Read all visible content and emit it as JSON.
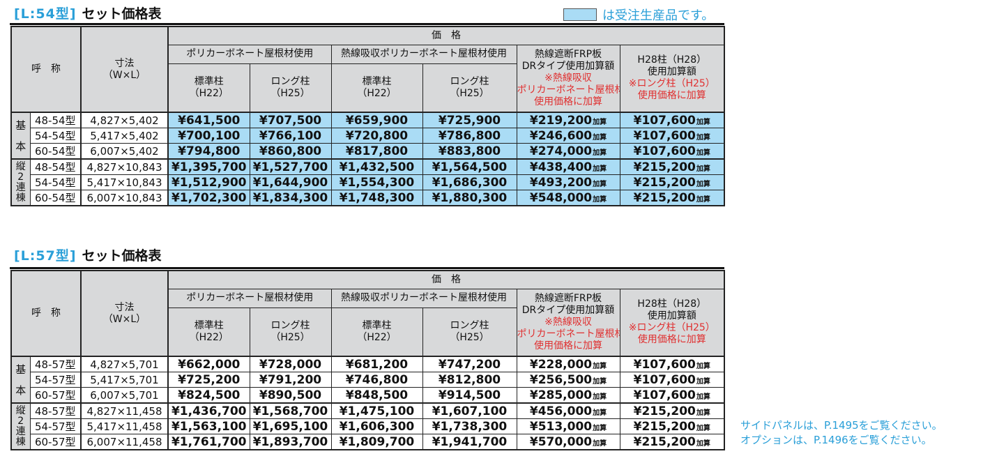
{
  "legend": {
    "text": "は受注生産品です。",
    "swatch_color": "#aadcf5"
  },
  "headers": {
    "name": "呼　称",
    "size_line1": "寸法",
    "size_line2": "（W×L）",
    "price": "価　格",
    "poly": "ポリカーボネート屋根材使用",
    "heat_poly": "熱線吸収ポリカーボネート屋根材使用",
    "std_line1": "標準柱",
    "std_line2": "（H22）",
    "long_line1": "ロング柱",
    "long_line2": "（H25）",
    "frp_line1": "熱線遮断FRP板",
    "frp_line2": "DRタイプ使用加算額",
    "frp_note1": "※熱線吸収",
    "frp_note2": "ポリカーボネート屋根材",
    "frp_note3": "使用価格に加算",
    "h28_line1": "H28柱（H28）",
    "h28_line2": "使用加算額",
    "h28_note1": "※ロング柱（H25）",
    "h28_note2": "使用価格に加算",
    "group_basic_1": "基",
    "group_basic_2": "本",
    "group_linked": "縦\n2\n連\n棟",
    "add_suffix": "加算"
  },
  "tables": [
    {
      "code": "[L:54型]",
      "title": "セット価格表",
      "made_to_order": true,
      "rows": [
        {
          "group": "基本",
          "model": "48-54型",
          "size": "4,827×5,402",
          "poly_std": "¥641,500",
          "poly_long": "¥707,500",
          "heat_std": "¥659,900",
          "heat_long": "¥725,900",
          "frp_add": "¥219,200",
          "h28_add": "¥107,600"
        },
        {
          "group": "基本",
          "model": "54-54型",
          "size": "5,417×5,402",
          "poly_std": "¥700,100",
          "poly_long": "¥766,100",
          "heat_std": "¥720,800",
          "heat_long": "¥786,800",
          "frp_add": "¥246,600",
          "h28_add": "¥107,600"
        },
        {
          "group": "基本",
          "model": "60-54型",
          "size": "6,007×5,402",
          "poly_std": "¥794,800",
          "poly_long": "¥860,800",
          "heat_std": "¥817,800",
          "heat_long": "¥883,800",
          "frp_add": "¥274,000",
          "h28_add": "¥107,600"
        },
        {
          "group": "縦2連棟",
          "model": "48-54型",
          "size": "4,827×10,843",
          "poly_std": "¥1,395,700",
          "poly_long": "¥1,527,700",
          "heat_std": "¥1,432,500",
          "heat_long": "¥1,564,500",
          "frp_add": "¥438,400",
          "h28_add": "¥215,200"
        },
        {
          "group": "縦2連棟",
          "model": "54-54型",
          "size": "5,417×10,843",
          "poly_std": "¥1,512,900",
          "poly_long": "¥1,644,900",
          "heat_std": "¥1,554,300",
          "heat_long": "¥1,686,300",
          "frp_add": "¥493,200",
          "h28_add": "¥215,200"
        },
        {
          "group": "縦2連棟",
          "model": "60-54型",
          "size": "6,007×10,843",
          "poly_std": "¥1,702,300",
          "poly_long": "¥1,834,300",
          "heat_std": "¥1,748,300",
          "heat_long": "¥1,880,300",
          "frp_add": "¥548,000",
          "h28_add": "¥215,200"
        }
      ]
    },
    {
      "code": "[L:57型]",
      "title": "セット価格表",
      "made_to_order": false,
      "rows": [
        {
          "group": "基本",
          "model": "48-57型",
          "size": "4,827×5,701",
          "poly_std": "¥662,000",
          "poly_long": "¥728,000",
          "heat_std": "¥681,200",
          "heat_long": "¥747,200",
          "frp_add": "¥228,000",
          "h28_add": "¥107,600"
        },
        {
          "group": "基本",
          "model": "54-57型",
          "size": "5,417×5,701",
          "poly_std": "¥725,200",
          "poly_long": "¥791,200",
          "heat_std": "¥746,800",
          "heat_long": "¥812,800",
          "frp_add": "¥256,500",
          "h28_add": "¥107,600"
        },
        {
          "group": "基本",
          "model": "60-57型",
          "size": "6,007×5,701",
          "poly_std": "¥824,500",
          "poly_long": "¥890,500",
          "heat_std": "¥848,500",
          "heat_long": "¥914,500",
          "frp_add": "¥285,000",
          "h28_add": "¥107,600"
        },
        {
          "group": "縦2連棟",
          "model": "48-57型",
          "size": "4,827×11,458",
          "poly_std": "¥1,436,700",
          "poly_long": "¥1,568,700",
          "heat_std": "¥1,475,100",
          "heat_long": "¥1,607,100",
          "frp_add": "¥456,000",
          "h28_add": "¥215,200"
        },
        {
          "group": "縦2連棟",
          "model": "54-57型",
          "size": "5,417×11,458",
          "poly_std": "¥1,563,100",
          "poly_long": "¥1,695,100",
          "heat_std": "¥1,606,300",
          "heat_long": "¥1,738,300",
          "frp_add": "¥513,000",
          "h28_add": "¥215,200"
        },
        {
          "group": "縦2連棟",
          "model": "60-57型",
          "size": "6,007×11,458",
          "poly_std": "¥1,761,700",
          "poly_long": "¥1,893,700",
          "heat_std": "¥1,809,700",
          "heat_long": "¥1,941,700",
          "frp_add": "¥570,000",
          "h28_add": "¥215,200"
        }
      ]
    }
  ],
  "footnotes": [
    "サイドパネルは、P.1495をご覧ください。",
    "オプションは、P.1496をご覧ください。"
  ]
}
